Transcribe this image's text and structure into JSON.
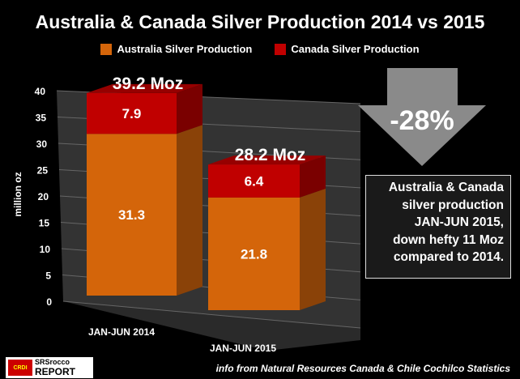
{
  "chart_data": {
    "type": "bar",
    "stacked": true,
    "three_d": true,
    "title": "Australia & Canada Silver Production 2014 vs 2015",
    "categories": [
      "JAN-JUN 2014",
      "JAN-JUN 2015"
    ],
    "series": [
      {
        "name": "Australia Silver Production",
        "values": [
          31.3,
          21.8
        ],
        "color": "#d4650a"
      },
      {
        "name": "Canada Silver Production",
        "values": [
          7.9,
          6.4
        ],
        "color": "#c00000"
      }
    ],
    "totals": [
      "39.2 Moz",
      "28.2 Moz"
    ],
    "data_labels": [
      [
        "31.3",
        "21.8"
      ],
      [
        "7.9",
        "6.4"
      ]
    ],
    "ylabel": "million oz",
    "ylim": [
      0,
      40
    ],
    "yticks": [
      "0",
      "5",
      "10",
      "15",
      "20",
      "25",
      "30",
      "35",
      "40"
    ],
    "grid": true,
    "legend": "top"
  },
  "callout": {
    "change": "-28%",
    "lines": [
      "Australia & Canada",
      "silver production",
      "JAN-JUN 2015,",
      "down hefty 11 Moz",
      "compared to 2014."
    ]
  },
  "source": "info from Natural Resources Canada & Chile Cochilco Statistics",
  "logo": {
    "emblem": "CRDI",
    "line1": "SRSrocco",
    "line2": "REPORT"
  }
}
